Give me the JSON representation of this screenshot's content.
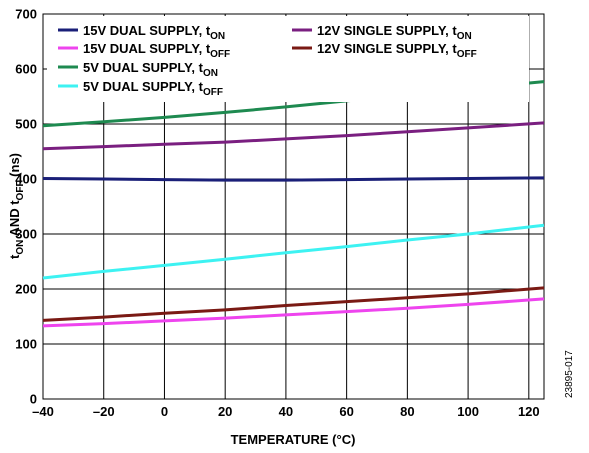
{
  "chart_data": {
    "type": "line",
    "xlabel": "TEMPERATURE (°C)",
    "ylabel": {
      "pre": "t",
      "sub1": "ON",
      "mid": " AND t",
      "sub2": "OFF",
      "post": " (ns)"
    },
    "xlim": [
      -40,
      125
    ],
    "ylim": [
      0,
      700
    ],
    "xticks": [
      "–40",
      "–20",
      "0",
      "20",
      "40",
      "60",
      "80",
      "100",
      "120"
    ],
    "xtick_values": [
      -40,
      -20,
      0,
      20,
      40,
      60,
      80,
      100,
      120
    ],
    "yticks": [
      "0",
      "100",
      "200",
      "300",
      "400",
      "500",
      "600",
      "700"
    ],
    "ytick_values": [
      0,
      100,
      200,
      300,
      400,
      500,
      600,
      700
    ],
    "grid": true,
    "legend_placement": "top",
    "figure_id": "23895-017",
    "series": [
      {
        "name": "15V DUAL SUPPLY, t",
        "sub": "ON",
        "color": "#1a1f78",
        "x": [
          -40,
          -20,
          0,
          20,
          40,
          60,
          80,
          100,
          125
        ],
        "y": [
          401,
          400,
          399,
          398,
          398,
          399,
          400,
          401,
          402
        ]
      },
      {
        "name": "15V DUAL SUPPLY, t",
        "sub": "OFF",
        "color": "#ee44ee",
        "x": [
          -40,
          -20,
          0,
          20,
          40,
          60,
          80,
          100,
          125
        ],
        "y": [
          133,
          137,
          142,
          147,
          153,
          159,
          165,
          172,
          182
        ]
      },
      {
        "name": "5V DUAL SUPPLY, t",
        "sub": "ON",
        "color": "#1e8a50",
        "x": [
          -40,
          -20,
          0,
          20,
          40,
          60,
          80,
          100,
          125
        ],
        "y": [
          497,
          504,
          512,
          521,
          531,
          542,
          553,
          564,
          577
        ]
      },
      {
        "name": "5V DUAL SUPPLY, t",
        "sub": "OFF",
        "color": "#3df2f2",
        "x": [
          -40,
          -20,
          0,
          20,
          40,
          60,
          80,
          100,
          125
        ],
        "y": [
          220,
          232,
          243,
          254,
          266,
          277,
          289,
          300,
          316
        ]
      },
      {
        "name": "12V SINGLE SUPPLY, t",
        "sub": "ON",
        "color": "#7a1f80",
        "x": [
          -40,
          -20,
          0,
          20,
          40,
          60,
          80,
          100,
          125
        ],
        "y": [
          455,
          459,
          463,
          467,
          473,
          479,
          486,
          493,
          502
        ]
      },
      {
        "name": "12V SINGLE SUPPLY, t",
        "sub": "OFF",
        "color": "#7a1a14",
        "x": [
          -40,
          -20,
          0,
          20,
          40,
          60,
          80,
          100,
          125
        ],
        "y": [
          143,
          149,
          156,
          162,
          170,
          177,
          184,
          191,
          202
        ]
      }
    ]
  }
}
